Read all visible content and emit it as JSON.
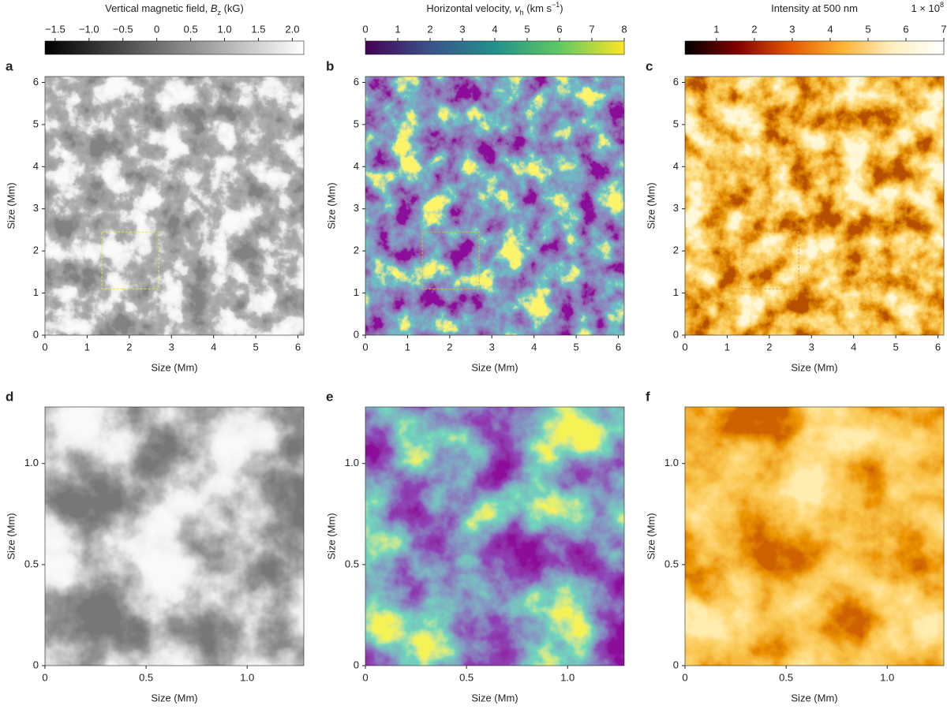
{
  "chart_data": [
    {
      "type": "image",
      "panel": "a",
      "xlabel": "Size (Mm)",
      "ylabel": "Size (Mm)",
      "xlim": [
        0,
        6.14
      ],
      "ylim": [
        0,
        6.14
      ],
      "xticks": [
        0,
        1,
        2,
        3,
        4,
        5,
        6
      ],
      "yticks": [
        0,
        1,
        2,
        3,
        4,
        5,
        6
      ],
      "inset": {
        "x": [
          1.35,
          2.7
        ],
        "y": [
          1.1,
          2.45
        ]
      },
      "inset_color": "#e8e84a",
      "colors": [
        "#3a3a3a",
        "#5a5a5a",
        "#707070",
        "#d8d8d8",
        "#f4f4f4"
      ],
      "colorbar": {
        "label": [
          "Vertical magnetic field, ",
          "B",
          "z",
          " (kG)"
        ],
        "lim": [
          -1.65,
          2.17
        ],
        "ticks": [
          {
            "value": -1.5,
            "label": "−1.5"
          },
          {
            "value": -1,
            "label": "−1.0"
          },
          {
            "value": -0.5,
            "label": "−0.5"
          },
          0,
          0.5,
          {
            "value": 1,
            "label": "1.0"
          },
          1.5,
          {
            "value": 2,
            "label": "2.0"
          }
        ],
        "colors": [
          "#000000",
          "#ffffff"
        ]
      }
    },
    {
      "type": "image",
      "panel": "b",
      "xlabel": "Size (Mm)",
      "ylabel": "Size (Mm)",
      "xlim": [
        0,
        6.14
      ],
      "ylim": [
        0,
        6.14
      ],
      "xticks": [
        0,
        1,
        2,
        3,
        4,
        5,
        6
      ],
      "yticks": [
        0,
        1,
        2,
        3,
        4,
        5,
        6
      ],
      "inset": {
        "x": [
          1.35,
          2.7
        ],
        "y": [
          1.1,
          2.45
        ]
      },
      "inset_color": "#f0b030",
      "colors": [
        "#440154",
        "#472d7b",
        "#3b528b",
        "#21918c",
        "#fde725"
      ],
      "colorbar": {
        "label": [
          "Horizontal velocity, ",
          "v",
          "h",
          " (km s",
          "−1",
          ")"
        ],
        "lim": [
          0,
          8
        ],
        "ticks": [
          0,
          1,
          2,
          3,
          4,
          5,
          6,
          7,
          8
        ],
        "colors": [
          "#440154",
          "#3b528b",
          "#21918c",
          "#5ec962",
          "#fde725"
        ]
      }
    },
    {
      "type": "image",
      "panel": "c",
      "xlabel": "Size (Mm)",
      "ylabel": "Size (Mm)",
      "xlim": [
        0,
        6.14
      ],
      "ylim": [
        0,
        6.14
      ],
      "xticks": [
        0,
        1,
        2,
        3,
        4,
        5,
        6
      ],
      "yticks": [
        0,
        1,
        2,
        3,
        4,
        5,
        6
      ],
      "inset": {
        "x": [
          1.35,
          2.7
        ],
        "y": [
          1.1,
          2.45
        ]
      },
      "inset_color": "#e8a040",
      "colors": [
        "#7a1500",
        "#c84800",
        "#ee8a10",
        "#ffc040",
        "#fff0b0"
      ],
      "colorbar": {
        "label": [
          "Intensity at 500 nm"
        ],
        "exponent": [
          "1 × 10",
          "8"
        ],
        "lim": [
          0.17,
          7
        ],
        "ticks": [
          1,
          2,
          3,
          4,
          5,
          6,
          7
        ],
        "colors": [
          "#000000",
          "#800000",
          "#e05500",
          "#ffb030",
          "#fff0c0",
          "#ffffff"
        ]
      }
    },
    {
      "type": "image",
      "panel": "d",
      "xlabel": "Size (Mm)",
      "ylabel": "Size (Mm)",
      "xlim": [
        0,
        1.28
      ],
      "ylim": [
        0,
        1.28
      ],
      "xticks": [
        0,
        0.5,
        {
          "value": 1,
          "label": "1.0"
        }
      ],
      "yticks": [
        0,
        0.5,
        {
          "value": 1,
          "label": "1.0"
        }
      ],
      "colors": [
        "#303030",
        "#4a4a4a",
        "#8a8a8a",
        "#dcdcdc",
        "#f2f2f2"
      ]
    },
    {
      "type": "image",
      "panel": "e",
      "xlabel": "Size (Mm)",
      "ylabel": "Size (Mm)",
      "xlim": [
        0,
        1.28
      ],
      "ylim": [
        0,
        1.28
      ],
      "xticks": [
        0,
        0.5,
        {
          "value": 1,
          "label": "1.0"
        }
      ],
      "yticks": [
        0,
        0.5,
        {
          "value": 1,
          "label": "1.0"
        }
      ],
      "colors": [
        "#440154",
        "#46117a",
        "#3a5a8c",
        "#29af7f",
        "#e8e419"
      ]
    },
    {
      "type": "image",
      "panel": "f",
      "xlabel": "Size (Mm)",
      "ylabel": "Size (Mm)",
      "xlim": [
        0,
        1.28
      ],
      "ylim": [
        0,
        1.28
      ],
      "xticks": [
        0,
        0.5,
        {
          "value": 1,
          "label": "1.0"
        }
      ],
      "yticks": [
        0,
        0.5,
        {
          "value": 1,
          "label": "1.0"
        }
      ],
      "colors": [
        "#a02000",
        "#d85000",
        "#f08a10",
        "#ffb030",
        "#ffd870"
      ]
    }
  ]
}
